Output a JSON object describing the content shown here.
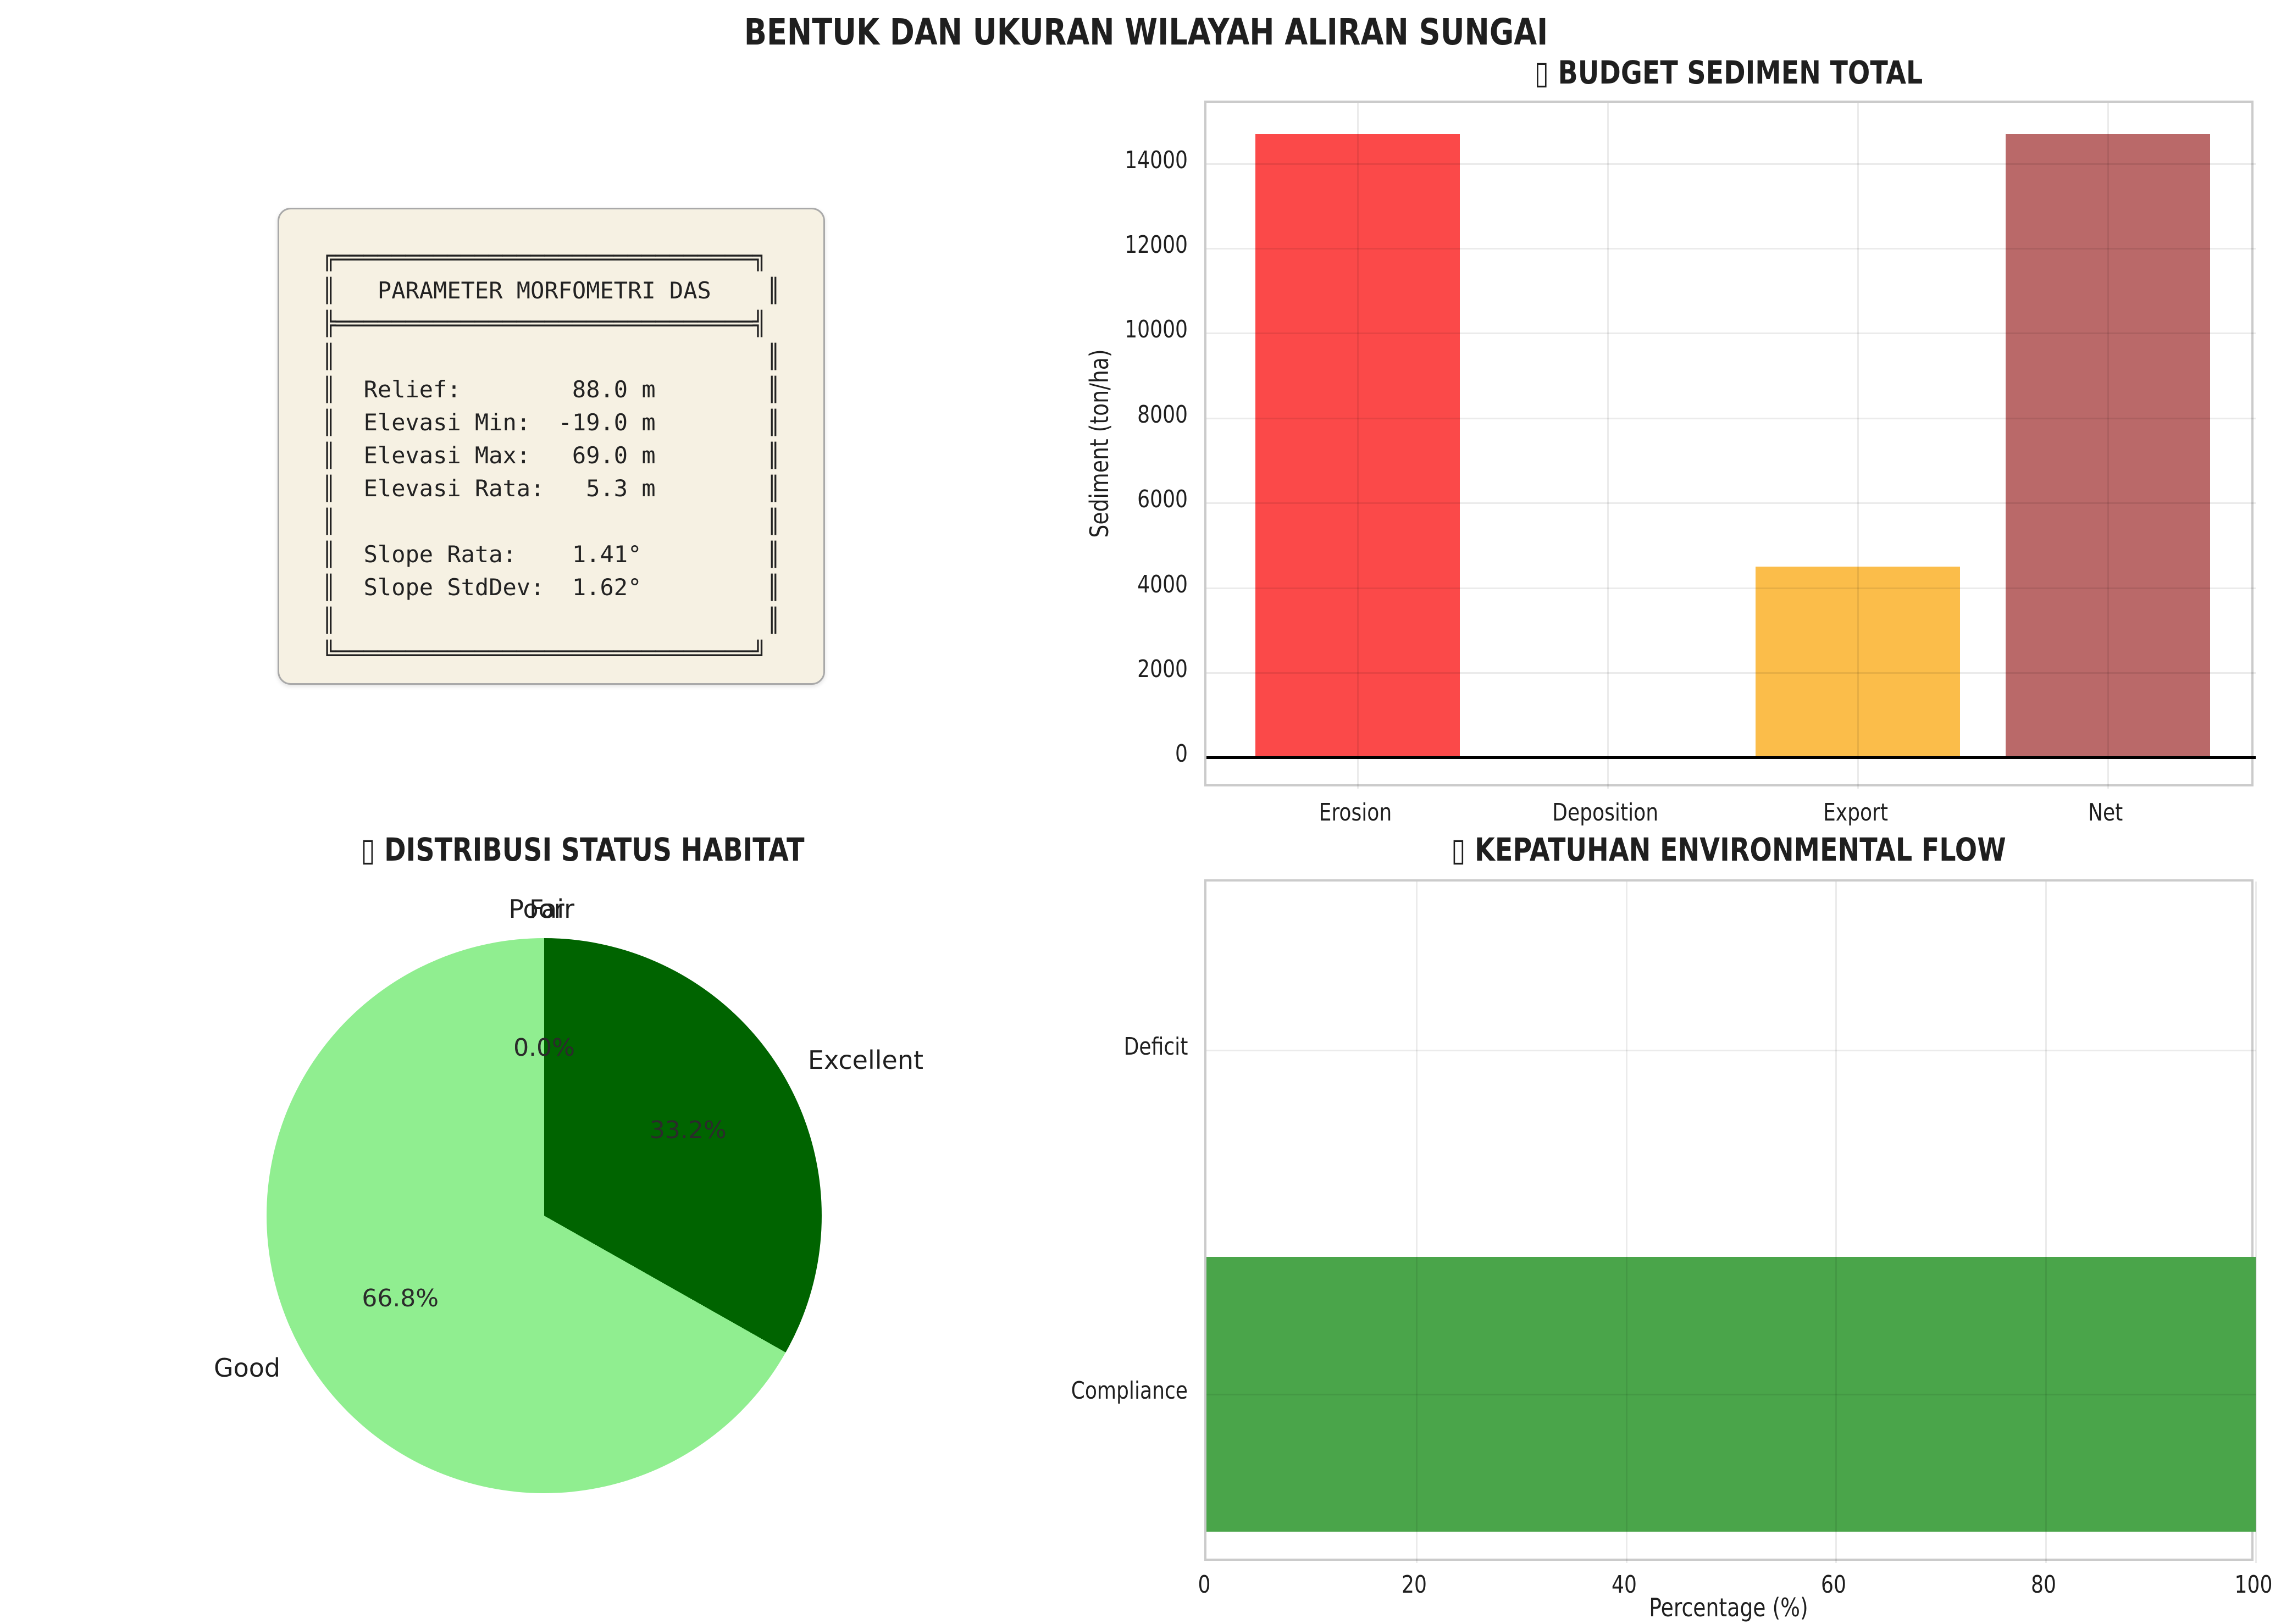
{
  "figure": {
    "title": "BENTUK DAN UKURAN WILAYAH ALIRAN SUNGAI",
    "background": "#FFFFFF",
    "text_color": "#1F1F1F"
  },
  "morphometry_panel": {
    "heading": "PARAMETER MORFOMETRI DAS",
    "relief": "88.0 m",
    "elevasi_min": "-19.0 m",
    "elevasi_max": "69.0 m",
    "elevasi_rata": "5.3 m",
    "slope_rata": "1.41°",
    "slope_stddev": "1.62°",
    "panel_bg": "#F6F1E3",
    "panel_border": "#A9A9A9",
    "box_lines": [
      "╔══════════════════════════════╗",
      "║   PARAMETER MORFOMETRI DAS    ║",
      "╠══════════════════════════════╣",
      "║                               ║",
      "║  Relief:        88.0 m        ║",
      "║  Elevasi Min:  -19.0 m        ║",
      "║  Elevasi Max:   69.0 m        ║",
      "║  Elevasi Rata:   5.3 m        ║",
      "║                               ║",
      "║  Slope Rata:    1.41°         ║",
      "║  Slope StdDev:  1.62°         ║",
      "║                               ║",
      "╚══════════════════════════════╝"
    ]
  },
  "chart_data": [
    {
      "id": "sediment_budget",
      "type": "bar",
      "title": "▯ BUDGET SEDIMEN TOTAL",
      "categories": [
        "Erosion",
        "Deposition",
        "Export",
        "Net"
      ],
      "values": [
        14700,
        0,
        4500,
        14700
      ],
      "bar_colors": [
        "#FB4949",
        null,
        "#FBBD4A",
        "#BA6969"
      ],
      "ylabel": "Sediment (ton/ha)",
      "yticks": [
        0,
        2000,
        4000,
        6000,
        8000,
        10000,
        12000,
        14000
      ],
      "ylim": [
        -735,
        15435
      ],
      "grid": true,
      "zero_line": true,
      "legend": "none"
    },
    {
      "id": "habitat_status",
      "type": "pie",
      "title": "▯ DISTRIBUSI STATUS HABITAT",
      "labels": [
        "Excellent",
        "Good",
        "Fair",
        "Poor"
      ],
      "values": [
        33.2,
        66.8,
        0.0,
        0.0
      ],
      "pct_labels": [
        "33.2%",
        "66.8%",
        "0.0%",
        "0.0%"
      ],
      "colors": [
        "#006400",
        "#90EE90",
        "#90EE90",
        "#90EE90"
      ],
      "start_angle": "top",
      "direction": "clockwise",
      "legend": "none"
    },
    {
      "id": "eflow_compliance",
      "type": "hbar",
      "title": "▯ KEPATUHAN ENVIRONMENTAL FLOW",
      "categories": [
        "Deficit",
        "Compliance"
      ],
      "values": [
        0,
        100
      ],
      "bar_color": "#4AA54A",
      "xlabel": "Percentage (%)",
      "xticks": [
        0,
        20,
        40,
        60,
        80,
        100
      ],
      "xlim": [
        0,
        100
      ],
      "grid": true,
      "legend": "none"
    }
  ]
}
